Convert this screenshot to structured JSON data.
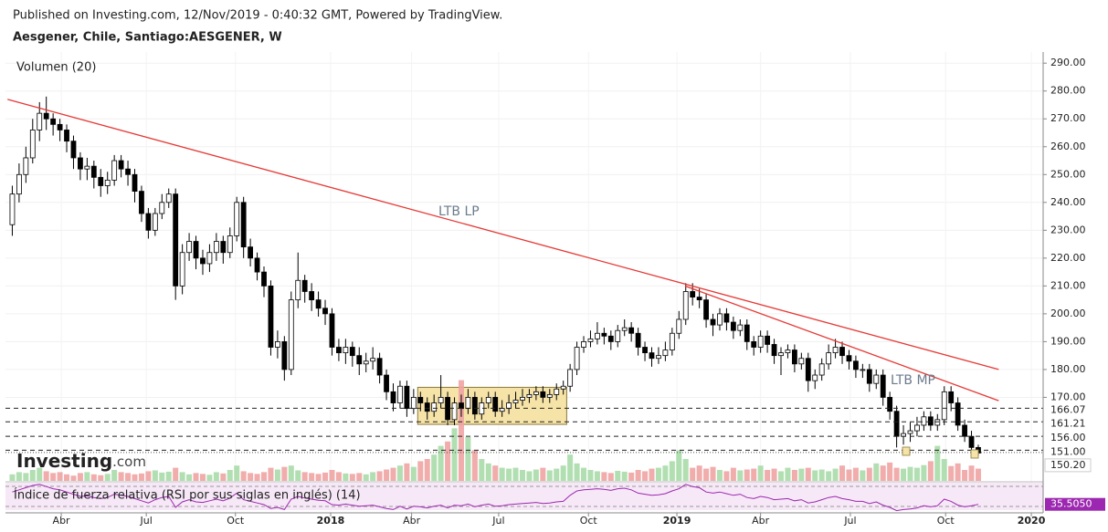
{
  "published": "Published on Investing.com, 12/Nov/2019 - 0:40:32 GMT, Powered by TradingView.",
  "logo": {
    "brand": "Investing",
    "suffix": ".com"
  },
  "chart_data": [
    {
      "type": "candlestick",
      "title": "Aesgener, Chile, Santiago:AESGENER, W",
      "open": [
        232,
        243,
        250,
        256,
        266,
        272,
        270,
        268,
        266,
        262,
        256,
        252,
        253,
        249,
        246,
        248,
        255,
        252,
        250,
        244,
        236,
        230,
        236,
        240,
        243,
        210,
        222,
        226,
        220,
        218,
        222,
        226,
        222,
        228,
        240,
        224,
        220,
        215,
        210,
        188,
        190,
        180,
        205,
        212,
        208,
        205,
        202,
        200,
        188,
        186,
        188,
        185,
        182,
        183,
        184,
        178,
        172,
        168,
        174,
        166,
        170,
        168,
        165,
        168,
        170,
        162,
        168,
        166,
        170,
        164,
        168,
        170,
        165,
        166,
        168,
        169,
        170,
        171,
        172,
        170,
        171,
        173,
        174,
        180,
        188,
        190,
        191,
        193,
        192,
        190,
        194,
        195,
        193,
        188,
        186,
        184,
        185,
        187,
        193,
        198,
        208,
        206,
        205,
        198,
        196,
        200,
        197,
        194,
        196,
        190,
        188,
        192,
        189,
        185,
        186,
        187,
        182,
        184,
        176,
        178,
        182,
        186,
        188,
        185,
        183,
        180,
        180,
        175,
        178,
        170,
        165,
        156,
        157,
        158,
        160,
        163,
        160,
        162,
        172,
        168,
        160,
        156,
        152
      ],
      "high": [
        246,
        254,
        260,
        270,
        276,
        278,
        272,
        270,
        268,
        264,
        258,
        256,
        255,
        252,
        251,
        257,
        257,
        255,
        252,
        246,
        238,
        238,
        243,
        245,
        245,
        225,
        229,
        228,
        223,
        225,
        229,
        228,
        231,
        242,
        242,
        227,
        222,
        217,
        212,
        194,
        192,
        208,
        222,
        214,
        211,
        208,
        205,
        202,
        191,
        191,
        190,
        188,
        186,
        188,
        186,
        180,
        175,
        176,
        176,
        173,
        172,
        170,
        171,
        178,
        172,
        170,
        171,
        173,
        172,
        170,
        172,
        172,
        169,
        171,
        172,
        173,
        173,
        174,
        174,
        173,
        175,
        176,
        182,
        190,
        192,
        194,
        197,
        195,
        194,
        196,
        198,
        197,
        195,
        190,
        188,
        188,
        190,
        195,
        201,
        211,
        211,
        209,
        207,
        200,
        202,
        202,
        199,
        198,
        198,
        192,
        194,
        194,
        191,
        188,
        189,
        189,
        186,
        186,
        180,
        184,
        189,
        191,
        190,
        187,
        185,
        182,
        182,
        180,
        180,
        172,
        167,
        160,
        161,
        163,
        165,
        165,
        164,
        174,
        174,
        170,
        162,
        158,
        153
      ],
      "low": [
        228,
        240,
        247,
        254,
        262,
        266,
        264,
        262,
        258,
        252,
        248,
        248,
        245,
        242,
        243,
        246,
        249,
        246,
        240,
        233,
        227,
        228,
        234,
        238,
        205,
        207,
        219,
        216,
        214,
        215,
        219,
        218,
        220,
        226,
        220,
        217,
        212,
        206,
        185,
        184,
        176,
        178,
        202,
        204,
        201,
        199,
        196,
        185,
        183,
        182,
        181,
        178,
        179,
        180,
        175,
        169,
        165,
        166,
        163,
        164,
        165,
        162,
        163,
        166,
        160,
        160,
        163,
        164,
        162,
        162,
        166,
        163,
        163,
        164,
        166,
        167,
        168,
        169,
        168,
        168,
        169,
        171,
        172,
        178,
        186,
        188,
        189,
        189,
        187,
        188,
        192,
        190,
        185,
        183,
        181,
        182,
        183,
        185,
        191,
        196,
        203,
        202,
        195,
        192,
        194,
        194,
        191,
        192,
        187,
        185,
        186,
        186,
        182,
        178,
        184,
        179,
        180,
        172,
        173,
        176,
        180,
        184,
        182,
        180,
        177,
        177,
        172,
        173,
        167,
        162,
        152,
        153,
        154,
        156,
        158,
        158,
        158,
        160,
        165,
        158,
        154,
        150,
        149
      ],
      "close": [
        243,
        250,
        256,
        266,
        272,
        270,
        268,
        266,
        262,
        256,
        252,
        253,
        249,
        246,
        248,
        255,
        252,
        250,
        244,
        236,
        230,
        236,
        240,
        243,
        210,
        222,
        226,
        220,
        218,
        222,
        226,
        222,
        228,
        240,
        224,
        220,
        215,
        210,
        188,
        190,
        180,
        205,
        212,
        208,
        205,
        202,
        200,
        188,
        186,
        188,
        185,
        182,
        183,
        184,
        178,
        172,
        168,
        174,
        166,
        170,
        168,
        165,
        168,
        170,
        162,
        168,
        166,
        170,
        164,
        168,
        170,
        165,
        166,
        168,
        169,
        170,
        171,
        172,
        170,
        171,
        173,
        174,
        180,
        188,
        190,
        191,
        193,
        192,
        190,
        194,
        195,
        193,
        188,
        186,
        184,
        185,
        187,
        193,
        198,
        208,
        206,
        205,
        198,
        196,
        200,
        197,
        194,
        196,
        190,
        188,
        192,
        189,
        185,
        186,
        187,
        182,
        184,
        176,
        178,
        182,
        186,
        188,
        185,
        183,
        180,
        180,
        175,
        178,
        170,
        165,
        156,
        157,
        158,
        160,
        163,
        160,
        162,
        172,
        168,
        160,
        156,
        152,
        150
      ],
      "up_color": "#ffffff",
      "down_color": "#000000",
      "xlim": [
        -1,
        151
      ],
      "ylim": [
        140,
        294
      ],
      "xticks": [
        {
          "value": 7.2,
          "label": "Abr"
        },
        {
          "value": 19.7,
          "label": "Jul"
        },
        {
          "value": 32.8,
          "label": "Oct"
        },
        {
          "value": 46.8,
          "label": "2018"
        },
        {
          "value": 58.7,
          "label": "Abr"
        },
        {
          "value": 71.5,
          "label": "Jul"
        },
        {
          "value": 84.7,
          "label": "Oct"
        },
        {
          "value": 97.7,
          "label": "2019"
        },
        {
          "value": 110,
          "label": "Abr"
        },
        {
          "value": 123.2,
          "label": "Jul"
        },
        {
          "value": 137.2,
          "label": "Oct"
        },
        {
          "value": 149.8,
          "label": "2020"
        }
      ],
      "yticks": [
        {
          "value": 290,
          "label": "290.00"
        },
        {
          "value": 280,
          "label": "280.00"
        },
        {
          "value": 270,
          "label": "270.00"
        },
        {
          "value": 260,
          "label": "260.00"
        },
        {
          "value": 250,
          "label": "250.00"
        },
        {
          "value": 240,
          "label": "240.00"
        },
        {
          "value": 230,
          "label": "230.00"
        },
        {
          "value": 220,
          "label": "220.00"
        },
        {
          "value": 210,
          "label": "210.00"
        },
        {
          "value": 200,
          "label": "200.00"
        },
        {
          "value": 190,
          "label": "190.00"
        },
        {
          "value": 180,
          "label": "180.00"
        },
        {
          "value": 170,
          "label": "170.00"
        }
      ],
      "grid": true,
      "levels": [
        {
          "value": 166.07,
          "label": "166.07"
        },
        {
          "value": 161.21,
          "label": "161.21"
        },
        {
          "value": 156,
          "label": "156.00"
        },
        {
          "value": 151,
          "label": "151.00"
        }
      ],
      "current_price": {
        "value": 150.2,
        "label": "150.20"
      },
      "trendlines": [
        {
          "label": "LTB LP",
          "color": "#e53935",
          "points": [
            [
              -0.7,
              277
            ],
            [
              145,
              180
            ]
          ]
        },
        {
          "label": "LTB MP",
          "color": "#e53935",
          "points": [
            [
              98.9,
              210
            ],
            [
              145,
              168.8
            ]
          ]
        }
      ],
      "zone": {
        "x": [
          59.6,
          81.5
        ],
        "y": [
          160.3,
          173.6
        ],
        "color": "#f6e3a8"
      }
    },
    {
      "type": "bar",
      "title": "Volumen (20)",
      "values": [
        1.5,
        2,
        1.8,
        2.5,
        3,
        2.2,
        1.8,
        2,
        1.5,
        1.2,
        1.8,
        2,
        1.5,
        1.3,
        1.6,
        2.5,
        2,
        1.8,
        1.5,
        1.7,
        2.2,
        2.4,
        1.9,
        2.1,
        3,
        2,
        1.5,
        1.8,
        1.6,
        1.4,
        2,
        1.7,
        2.5,
        3.5,
        2.2,
        1.8,
        1.6,
        2,
        3,
        2.6,
        3.2,
        3.5,
        2.4,
        2,
        1.8,
        1.6,
        1.9,
        2.5,
        2,
        1.7,
        1.6,
        1.8,
        1.5,
        2,
        2.2,
        2.6,
        3,
        3.5,
        4,
        3.2,
        4.5,
        5,
        6,
        8,
        9,
        12,
        23,
        10,
        7,
        5,
        4,
        3.5,
        3,
        2.8,
        3,
        2.5,
        2.2,
        2.6,
        3,
        2.4,
        2.8,
        3.5,
        6,
        4,
        3,
        2.5,
        2.2,
        2,
        1.8,
        2.3,
        2.1,
        1.9,
        2.5,
        2.2,
        2.8,
        3,
        3.5,
        4.5,
        7,
        5,
        3,
        3.5,
        2.8,
        3.2,
        2.5,
        2.2,
        3,
        2.4,
        2.6,
        2.8,
        3.5,
        2.5,
        2.8,
        2.2,
        3,
        2.5,
        2.8,
        3,
        2.4,
        2.6,
        2.2,
        2.8,
        3.5,
        2.6,
        3,
        2.4,
        3,
        4,
        3.5,
        4.2,
        3,
        2.8,
        3.2,
        3,
        3.6,
        4.5,
        8,
        5,
        3.4,
        4,
        2.5,
        3.5,
        2.8
      ],
      "ylim": [
        0,
        25
      ],
      "up_color": "#a8dba8",
      "down_color": "#f0a3a3"
    },
    {
      "type": "line",
      "title": "Índice de fuerza relativa (RSI por sus siglas en inglés) (14)",
      "values": [
        58,
        62,
        66,
        70,
        72,
        68,
        64,
        62,
        58,
        54,
        50,
        51,
        48,
        46,
        48,
        54,
        52,
        50,
        46,
        42,
        38,
        44,
        48,
        50,
        30,
        40,
        44,
        40,
        39,
        42,
        45,
        42,
        47,
        56,
        44,
        41,
        38,
        35,
        28,
        30,
        26,
        45,
        50,
        47,
        45,
        43,
        42,
        35,
        34,
        36,
        34,
        32,
        33,
        34,
        31,
        28,
        26,
        32,
        27,
        32,
        31,
        29,
        32,
        34,
        29,
        34,
        33,
        36,
        31,
        34,
        36,
        32,
        33,
        35,
        36,
        37,
        38,
        39,
        37,
        38,
        40,
        41,
        52,
        60,
        62,
        63,
        64,
        63,
        61,
        64,
        65,
        62,
        56,
        54,
        52,
        53,
        55,
        60,
        64,
        72,
        68,
        66,
        58,
        56,
        58,
        55,
        52,
        54,
        48,
        46,
        50,
        48,
        44,
        45,
        46,
        42,
        44,
        38,
        40,
        44,
        48,
        50,
        46,
        44,
        41,
        41,
        37,
        40,
        34,
        30,
        24,
        26,
        27,
        29,
        33,
        31,
        33,
        45,
        41,
        34,
        31,
        33,
        35.505
      ],
      "ylim": [
        25,
        75
      ],
      "color": "#9c27b0",
      "current": {
        "value": 35.505,
        "label": "35.5050"
      }
    }
  ]
}
